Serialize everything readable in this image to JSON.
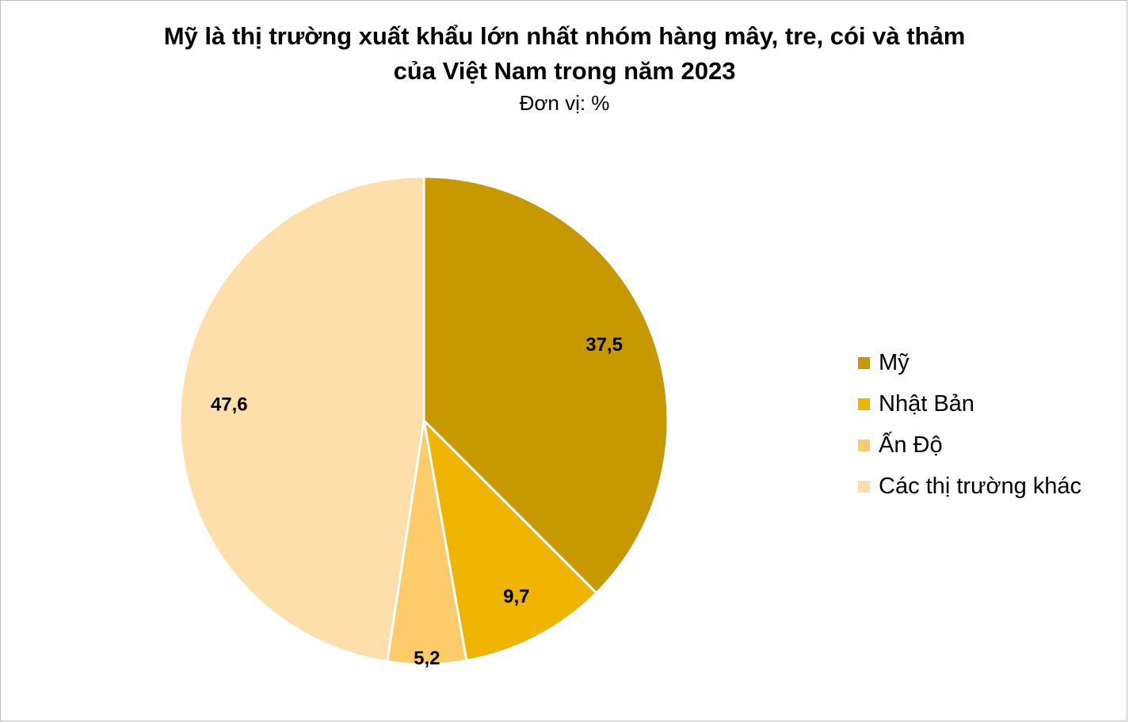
{
  "chart_data": {
    "type": "pie",
    "title_line1": "Mỹ là thị trường xuất khẩu lớn nhất nhóm hàng mây, tre, cói và thảm",
    "title_line2": "của Việt Nam trong năm 2023",
    "subtitle": "Đơn vị: %",
    "categories": [
      "Mỹ",
      "Nhật Bản",
      "Ấn Độ",
      "Các thị trường khác"
    ],
    "values": [
      37.5,
      9.7,
      5.2,
      47.6
    ],
    "data_labels": [
      "37,5",
      "9,7",
      "5,2",
      "47,6"
    ],
    "colors": [
      "#C89800",
      "#EEB400",
      "#FECB6A",
      "#FEDEAA"
    ],
    "legend_placement": "right"
  }
}
